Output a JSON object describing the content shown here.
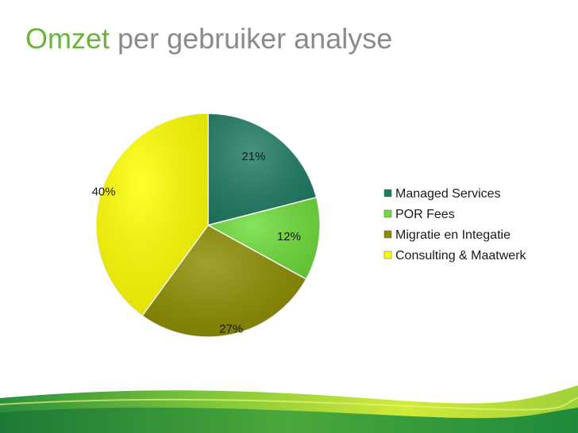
{
  "title": {
    "accent": "Omzet",
    "rest": "per gebruiker analyse"
  },
  "colors": {
    "title_accent": "#6ab43e",
    "title_rest": "#8a8a8a",
    "footer_green_light": "#c8e63a",
    "footer_green_dark": "#1f8a3a"
  },
  "chart_data": {
    "type": "pie",
    "title": "",
    "start_angle_deg": 0,
    "direction": "clockwise",
    "legend_position": "right",
    "series": [
      {
        "name": "Managed Services",
        "value": 21,
        "label": "21%",
        "color": "#1e7a62"
      },
      {
        "name": "POR Fees",
        "value": 12,
        "label": "12%",
        "color": "#6edc3a"
      },
      {
        "name": "Migratie en Integatie",
        "value": 27,
        "label": "27%",
        "color": "#8c8c00"
      },
      {
        "name": "Consulting & Maatwerk",
        "value": 40,
        "label": "40%",
        "color": "#ffff00"
      }
    ]
  }
}
